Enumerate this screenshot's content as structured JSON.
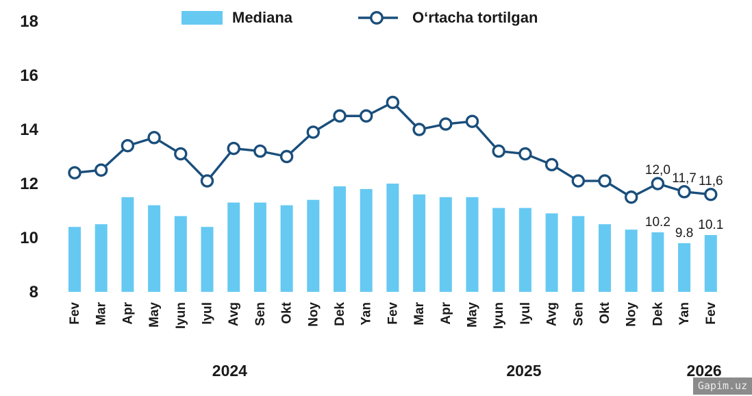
{
  "legend": {
    "bar_label": "Mediana",
    "line_label": "Oʻrtacha tortilgan"
  },
  "colors": {
    "bar": "#66C9F2",
    "line": "#1A4E7B",
    "text": "#1A1A1A",
    "watermark_bg": "#8B8B8B",
    "watermark_text": "#EDEDED"
  },
  "watermark": {
    "text": "Gapim.uz"
  },
  "chart_data": {
    "type": "combo",
    "title": "",
    "xlabel": "",
    "ylabel": "",
    "ylim": [
      8,
      18
    ],
    "yticks": [
      8,
      10,
      12,
      14,
      16,
      18
    ],
    "grid": false,
    "legend_position": "top",
    "categories": [
      "Fev",
      "Mar",
      "Apr",
      "May",
      "Iyun",
      "Iyul",
      "Avg",
      "Sen",
      "Okt",
      "Noy",
      "Dek",
      "Yan",
      "Fev",
      "Mar",
      "Apr",
      "May",
      "Iyun",
      "Iyul",
      "Avg",
      "Sen",
      "Okt",
      "Noy",
      "Dek",
      "Yan",
      "Fev"
    ],
    "year_groups": [
      {
        "label": "2024",
        "from_index": 0,
        "to_index": 10,
        "anchor_index": 5.85
      },
      {
        "label": "2025",
        "from_index": 11,
        "to_index": 22,
        "anchor_index": 16.95
      },
      {
        "label": "2026",
        "from_index": 23,
        "to_index": 24,
        "anchor_index": 23.75
      }
    ],
    "series": [
      {
        "name": "Mediana",
        "type": "bar",
        "values": [
          10.4,
          10.5,
          11.5,
          11.2,
          10.8,
          10.4,
          11.3,
          11.3,
          11.2,
          11.4,
          11.9,
          11.8,
          12.0,
          11.6,
          11.5,
          11.5,
          11.1,
          11.1,
          10.9,
          10.8,
          10.5,
          10.3,
          10.2,
          9.8,
          10.1
        ]
      },
      {
        "name": "Oʻrtacha tortilgan",
        "type": "line",
        "values": [
          12.4,
          12.5,
          13.4,
          13.7,
          13.1,
          12.1,
          13.3,
          13.2,
          13.0,
          13.9,
          14.5,
          14.5,
          15.0,
          14.0,
          14.2,
          14.3,
          13.2,
          13.1,
          12.7,
          12.1,
          12.1,
          11.5,
          12.0,
          11.7,
          11.6
        ]
      }
    ],
    "point_labels": {
      "line": [
        {
          "index": 22,
          "text": "12,0"
        },
        {
          "index": 23,
          "text": "11,7"
        },
        {
          "index": 24,
          "text": "11,6"
        }
      ],
      "bar": [
        {
          "index": 22,
          "text": "10.2"
        },
        {
          "index": 23,
          "text": "9.8"
        },
        {
          "index": 24,
          "text": "10.1"
        }
      ]
    }
  }
}
